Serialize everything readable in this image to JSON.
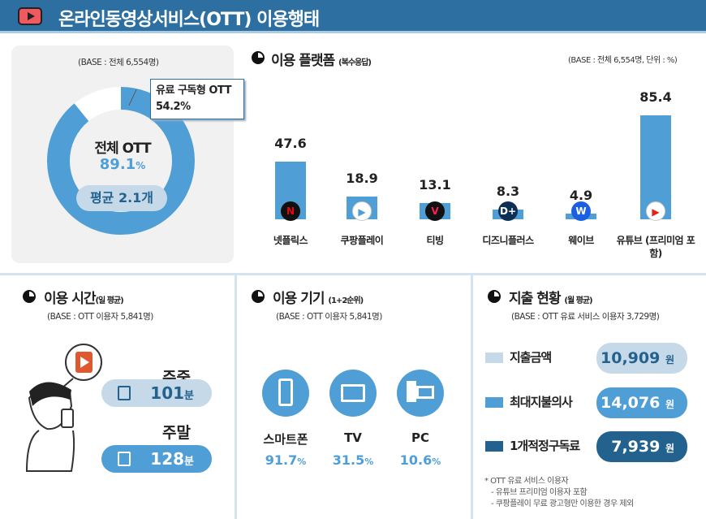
{
  "header": {
    "title": "온라인동영상서비스(OTT) 이용행태",
    "icon": "play-icon"
  },
  "overview": {
    "base": "(BASE : 전체 6,554명)",
    "center_label": "전체 OTT",
    "total_pct": "89.1",
    "pct_unit": "%",
    "avg": "평균 2.1개",
    "callout_label": "유료 구독형 OTT",
    "callout_value": "54.2%",
    "total_value": 89.1,
    "paid_value": 54.2
  },
  "platform": {
    "title": "이용 플랫폼",
    "subtitle": "(복수응답)",
    "base": "(BASE : 전체 6,554명, 단위 : %)"
  },
  "chart_data": {
    "type": "bar",
    "categories": [
      "넷플릭스",
      "쿠팡플레이",
      "티빙",
      "디즈니플러스",
      "웨이브",
      "유튜브 (프리미엄 포함)"
    ],
    "values": [
      47.6,
      18.9,
      13.1,
      8.3,
      4.9,
      85.4
    ],
    "labels": [
      "47.6",
      "18.9",
      "13.1",
      "8.3",
      "4.9",
      "85.4"
    ],
    "ylim": [
      0,
      100
    ],
    "grid": false,
    "color": "#4f9ed6",
    "unit": "%"
  },
  "time": {
    "title": "이용 시간",
    "subtitle": "(일 평균)",
    "base": "(BASE : OTT 이용자 5,841명)",
    "weekday_label": "주중",
    "weekday_value": "101",
    "weekend_label": "주말",
    "weekend_value": "128",
    "unit": "분"
  },
  "device": {
    "title": "이용 기기",
    "subtitle": "(1+2순위)",
    "base": "(BASE : OTT 이용자 5,841명)",
    "items": [
      {
        "label": "스마트폰",
        "value": "91.7",
        "icon": "smartphone-icon"
      },
      {
        "label": "TV",
        "value": "31.5",
        "icon": "tv-icon"
      },
      {
        "label": "PC",
        "value": "10.6",
        "icon": "pc-icon"
      }
    ],
    "unit": "%"
  },
  "spend": {
    "title": "지출 현황",
    "subtitle": "(월 평균)",
    "base": "(BASE : OTT 유료 서비스 이용자 3,729명)",
    "items": [
      {
        "label": "지출금액",
        "value": "10,909",
        "color": "#c5d9e8"
      },
      {
        "label": "최대지불의사",
        "value": "14,076",
        "color": "#4f9ed6"
      },
      {
        "label": "1개적정구독료",
        "value": "7,939",
        "color": "#23628f"
      }
    ],
    "unit": "원",
    "notes": [
      "* OTT 유료  서비스 이용자",
      "- 유튜브 프리미엄 이용자 포함",
      "- 쿠팡플레이 무료 광고형만 이용한 경우 제외"
    ]
  },
  "colors": {
    "header": "#2c6fa0",
    "accent": "#4f9ed6",
    "light": "#c5d9e8",
    "dark": "#23628f"
  }
}
